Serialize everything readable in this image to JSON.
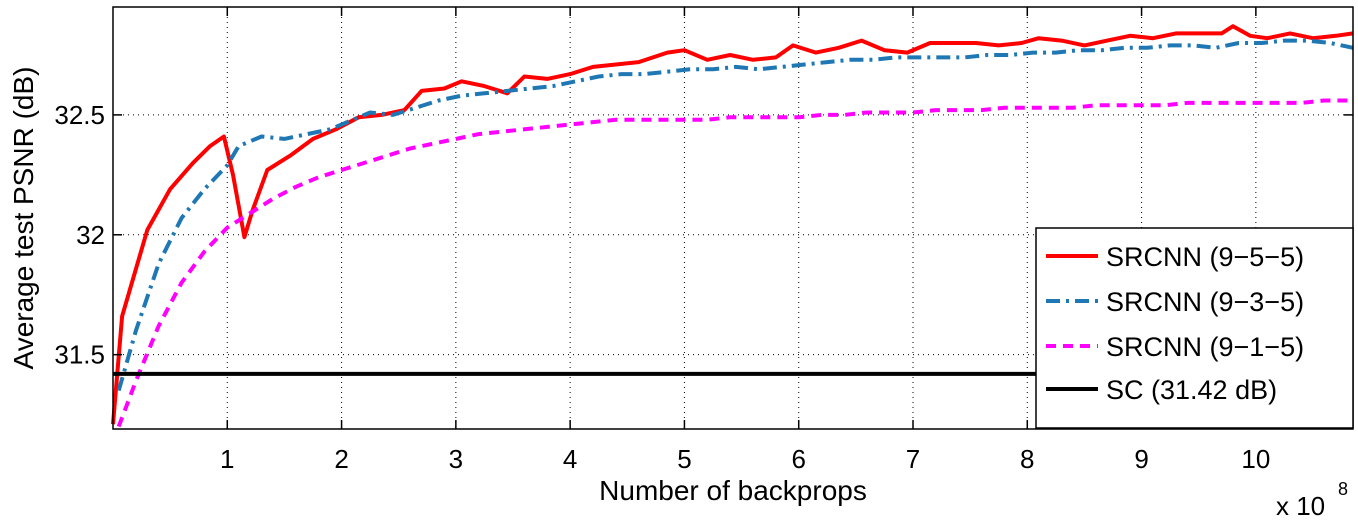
{
  "chart_data": {
    "type": "line",
    "title": "",
    "xlabel": "Number of backprops",
    "x_multiplier_label": "x 10",
    "x_multiplier_exponent": "8",
    "ylabel": "Average test PSNR (dB)",
    "xlim": [
      0,
      10.85
    ],
    "ylim": [
      31.19,
      32.95
    ],
    "xticks": [
      1,
      2,
      3,
      4,
      5,
      6,
      7,
      8,
      9,
      10
    ],
    "xtick_labels": [
      "1",
      "2",
      "3",
      "4",
      "5",
      "6",
      "7",
      "8",
      "9",
      "10"
    ],
    "yticks": [
      31.5,
      32,
      32.5
    ],
    "ytick_labels": [
      "31.5",
      "32",
      "32.5"
    ],
    "grid": true,
    "legend_position": "lower-right",
    "series": [
      {
        "name": "SRCNN (9−5−5)",
        "color": "#ff0000",
        "style": "solid",
        "x": [
          0.0,
          0.08,
          0.3,
          0.5,
          0.7,
          0.85,
          0.97,
          1.05,
          1.15,
          1.22,
          1.35,
          1.55,
          1.75,
          1.95,
          2.15,
          2.35,
          2.55,
          2.7,
          2.9,
          3.05,
          3.25,
          3.45,
          3.6,
          3.8,
          4.0,
          4.2,
          4.4,
          4.6,
          4.85,
          5.0,
          5.2,
          5.4,
          5.6,
          5.8,
          5.95,
          6.15,
          6.35,
          6.55,
          6.75,
          6.95,
          7.15,
          7.35,
          7.55,
          7.75,
          7.95,
          8.1,
          8.3,
          8.5,
          8.7,
          8.9,
          9.1,
          9.3,
          9.5,
          9.7,
          9.8,
          9.95,
          10.1,
          10.3,
          10.5,
          10.7,
          10.85
        ],
        "y": [
          31.21,
          31.66,
          32.02,
          32.19,
          32.3,
          32.37,
          32.41,
          32.25,
          31.99,
          32.1,
          32.27,
          32.33,
          32.4,
          32.44,
          32.49,
          32.5,
          32.52,
          32.6,
          32.61,
          32.64,
          32.62,
          32.59,
          32.66,
          32.65,
          32.67,
          32.7,
          32.71,
          32.72,
          32.76,
          32.77,
          32.73,
          32.75,
          32.73,
          32.74,
          32.79,
          32.76,
          32.78,
          32.81,
          32.77,
          32.76,
          32.8,
          32.8,
          32.8,
          32.79,
          32.8,
          32.82,
          32.81,
          32.79,
          32.81,
          32.83,
          32.82,
          32.84,
          32.84,
          32.84,
          32.87,
          32.83,
          32.82,
          32.84,
          32.82,
          32.83,
          32.84
        ]
      },
      {
        "name": "SRCNN (9−3−5)",
        "color": "#1f77b4",
        "style": "dashdot",
        "x": [
          0.05,
          0.2,
          0.4,
          0.6,
          0.8,
          1.0,
          1.1,
          1.3,
          1.5,
          1.7,
          1.9,
          2.05,
          2.25,
          2.45,
          2.65,
          2.85,
          3.05,
          3.25,
          3.45,
          3.65,
          3.85,
          4.05,
          4.25,
          4.45,
          4.65,
          4.85,
          5.05,
          5.25,
          5.45,
          5.65,
          5.85,
          6.05,
          6.25,
          6.45,
          6.65,
          6.85,
          7.05,
          7.25,
          7.45,
          7.65,
          7.85,
          8.05,
          8.25,
          8.45,
          8.65,
          8.85,
          9.05,
          9.25,
          9.45,
          9.65,
          9.85,
          10.05,
          10.25,
          10.45,
          10.65,
          10.85
        ],
        "y": [
          31.35,
          31.6,
          31.88,
          32.07,
          32.19,
          32.29,
          32.37,
          32.41,
          32.4,
          32.42,
          32.44,
          32.47,
          32.51,
          32.5,
          32.53,
          32.56,
          32.58,
          32.59,
          32.6,
          32.61,
          32.62,
          32.64,
          32.66,
          32.67,
          32.67,
          32.68,
          32.69,
          32.69,
          32.7,
          32.69,
          32.7,
          32.71,
          32.72,
          32.73,
          32.73,
          32.74,
          32.74,
          32.74,
          32.74,
          32.75,
          32.75,
          32.76,
          32.76,
          32.77,
          32.77,
          32.78,
          32.78,
          32.79,
          32.79,
          32.78,
          32.8,
          32.8,
          32.81,
          32.81,
          32.8,
          32.78
        ]
      },
      {
        "name": "SRCNN (9−1−5)",
        "color": "#ff00ff",
        "style": "dashed",
        "x": [
          0.05,
          0.2,
          0.4,
          0.6,
          0.8,
          1.0,
          1.2,
          1.4,
          1.6,
          1.8,
          2.0,
          2.2,
          2.4,
          2.6,
          2.8,
          3.0,
          3.2,
          3.4,
          3.6,
          3.8,
          4.0,
          4.2,
          4.4,
          4.6,
          4.8,
          5.0,
          5.2,
          5.4,
          5.6,
          5.8,
          6.0,
          6.2,
          6.4,
          6.6,
          6.8,
          7.0,
          7.2,
          7.4,
          7.6,
          7.8,
          8.0,
          8.2,
          8.4,
          8.6,
          8.8,
          9.0,
          9.2,
          9.4,
          9.6,
          9.8,
          10.0,
          10.2,
          10.4,
          10.6,
          10.85
        ],
        "y": [
          31.2,
          31.39,
          31.62,
          31.8,
          31.93,
          32.03,
          32.09,
          32.15,
          32.2,
          32.24,
          32.27,
          32.3,
          32.33,
          32.36,
          32.38,
          32.4,
          32.42,
          32.43,
          32.44,
          32.45,
          32.46,
          32.47,
          32.48,
          32.48,
          32.48,
          32.48,
          32.48,
          32.49,
          32.49,
          32.49,
          32.49,
          32.5,
          32.5,
          32.51,
          32.51,
          32.51,
          32.52,
          32.52,
          32.52,
          32.53,
          32.53,
          32.53,
          32.53,
          32.54,
          32.54,
          32.54,
          32.54,
          32.55,
          32.55,
          32.55,
          32.55,
          32.55,
          32.55,
          32.56,
          32.56
        ]
      },
      {
        "name": "SC (31.42 dB)",
        "color": "#000000",
        "style": "solid",
        "x": [
          0,
          10.85
        ],
        "y": [
          31.42,
          31.42
        ]
      }
    ]
  }
}
